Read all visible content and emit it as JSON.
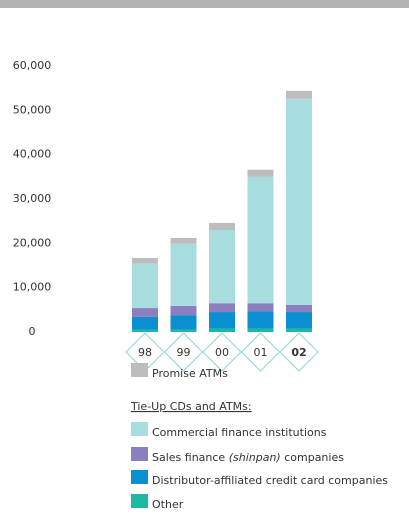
{
  "chart_data": {
    "type": "stacked-bar",
    "categories": [
      "98",
      "99",
      "00",
      "01",
      "02"
    ],
    "ylim": [
      0,
      60000
    ],
    "yticks": [
      0,
      {
        "value": 10000,
        "label": "10,000"
      },
      {
        "value": 20000,
        "label": "20,000"
      },
      {
        "value": 30000,
        "label": "30,000"
      },
      {
        "value": 40000,
        "label": "40,000"
      },
      {
        "value": 50000,
        "label": "50,000"
      },
      {
        "value": 60000,
        "label": "60,000"
      }
    ],
    "legend_group": "Tie-Up CDs and ATMs:",
    "series": [
      {
        "name": "Other",
        "color": "#1db8a0",
        "values": [
          500,
          500,
          800,
          800,
          800
        ]
      },
      {
        "name": "Distributor-affiliated credit card companies",
        "color": "#0a8fd0",
        "values": [
          2900,
          3300,
          3700,
          3900,
          3700
        ]
      },
      {
        "name": "Sales finance (shinpan) companies",
        "color": "#8b7fc0",
        "values": [
          2000,
          2100,
          2000,
          1800,
          1600
        ]
      },
      {
        "name": "Commercial finance institutions",
        "color": "#a8dde0",
        "values": [
          10000,
          14000,
          16500,
          28500,
          46500
        ]
      },
      {
        "name": "Promise ATMs",
        "color": "#bdbdbd",
        "values": [
          1300,
          1300,
          1600,
          1600,
          1800
        ]
      }
    ]
  }
}
